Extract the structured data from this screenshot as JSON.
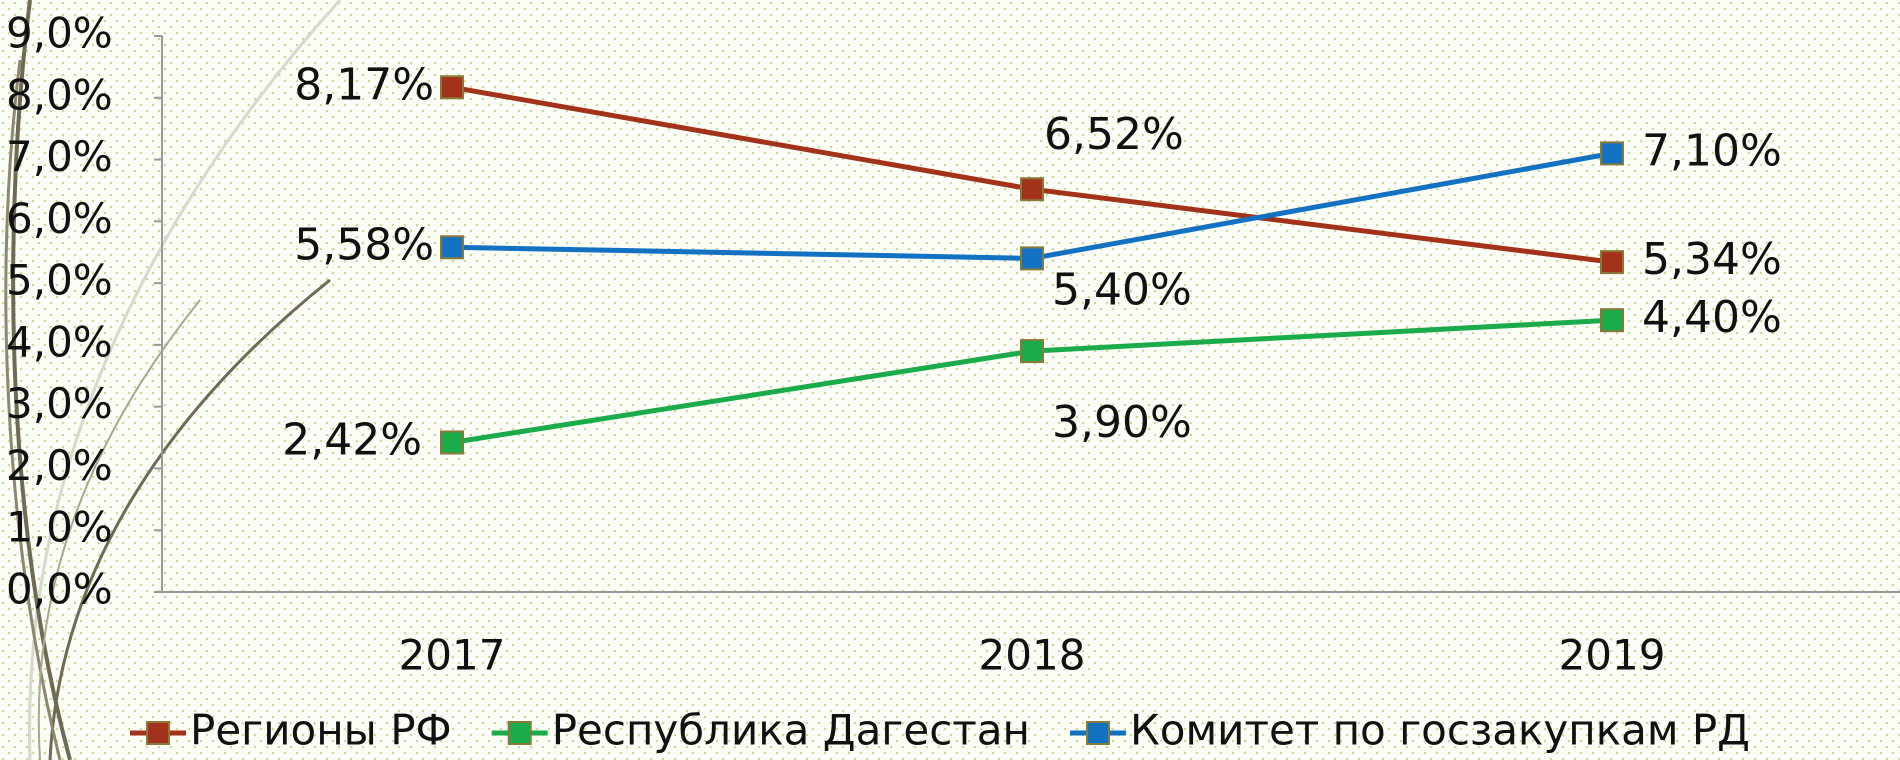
{
  "chart_data": {
    "type": "line",
    "categories": [
      "2017",
      "2018",
      "2019"
    ],
    "series": [
      {
        "name": "Регионы РФ",
        "color": "#a3321a",
        "values": [
          8.17,
          6.52,
          5.34
        ],
        "value_labels": [
          "8,17%",
          "6,52%",
          "5,34%"
        ]
      },
      {
        "name": "Республика Дагестан",
        "color": "#1aab4b",
        "values": [
          2.42,
          3.9,
          4.4
        ],
        "value_labels": [
          "2,42%",
          "3,90%",
          "4,40%"
        ]
      },
      {
        "name": "Комитет по госзакупкам РД",
        "color": "#1271c1",
        "values": [
          5.58,
          5.4,
          7.1
        ],
        "value_labels": [
          "5,58%",
          "5,40%",
          "7,10%"
        ]
      }
    ],
    "ylim": [
      0,
      9
    ],
    "yticks": [
      {
        "value": 0,
        "label": "0,0%"
      },
      {
        "value": 1,
        "label": "1,0%"
      },
      {
        "value": 2,
        "label": "2,0%"
      },
      {
        "value": 3,
        "label": "3,0%"
      },
      {
        "value": 4,
        "label": "4,0%"
      },
      {
        "value": 5,
        "label": "5,0%"
      },
      {
        "value": 6,
        "label": "6,0%"
      },
      {
        "value": 7,
        "label": "7,0%"
      },
      {
        "value": 8,
        "label": "8,0%"
      },
      {
        "value": 9,
        "label": "9,0%"
      }
    ],
    "legend": "bottom"
  }
}
